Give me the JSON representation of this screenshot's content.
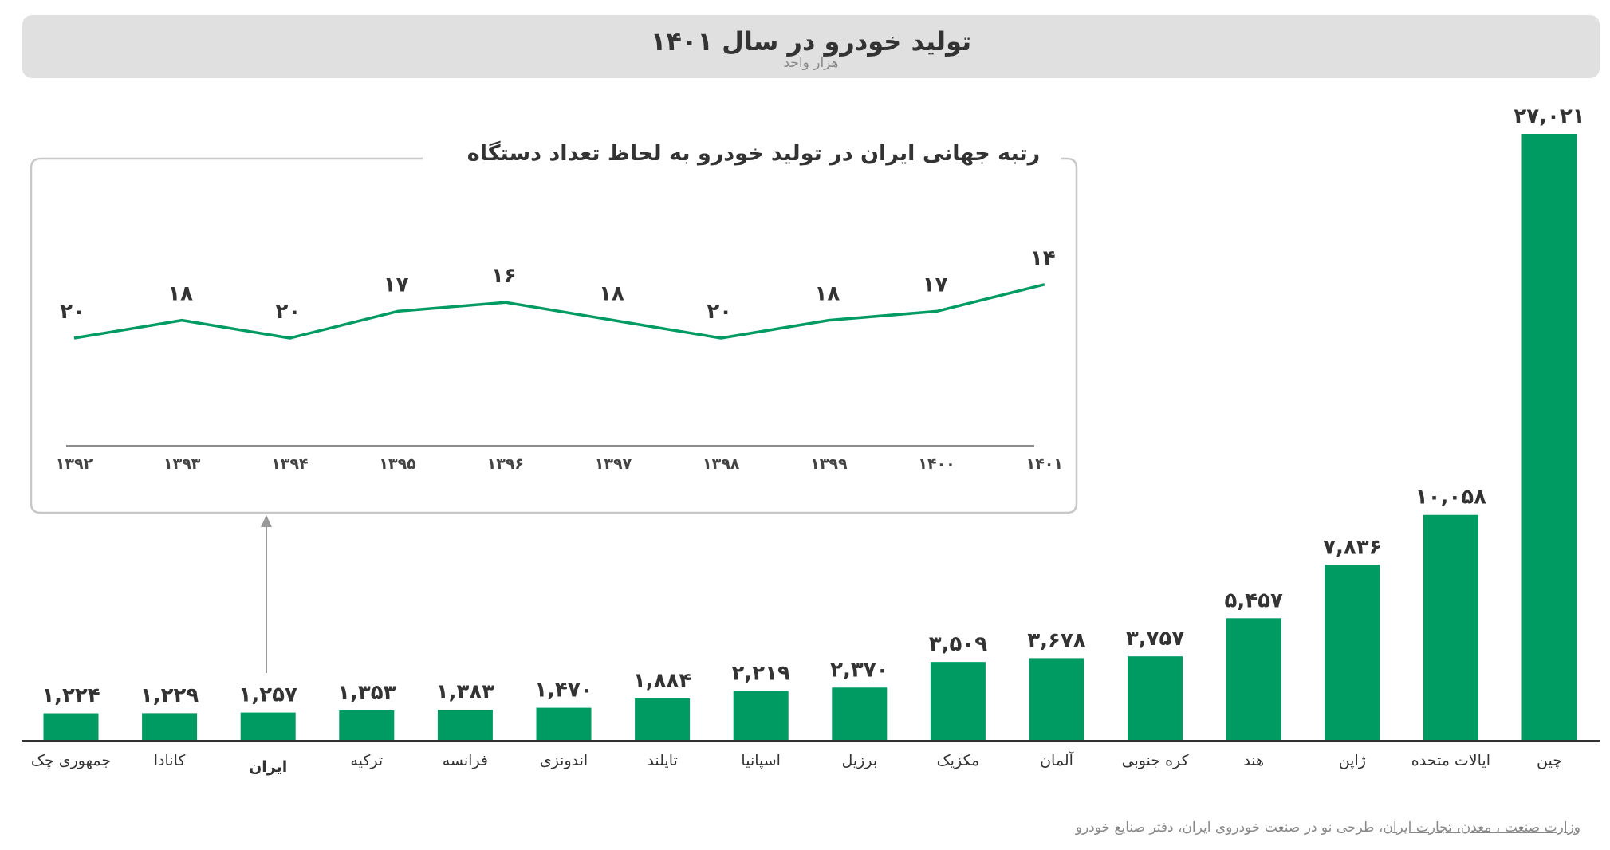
{
  "header": {
    "title": "تولید خودرو در سال ۱۴۰۱",
    "subtitle": "هزار واحد"
  },
  "colors": {
    "bar": "#009a63",
    "line": "#009a63",
    "header_bg": "#e0e0e0",
    "axis": "#333333",
    "inset_border": "#c8c8c8"
  },
  "chart_data": [
    {
      "type": "bar",
      "title": "تولید خودرو در سال ۱۴۰۱",
      "subtitle": "هزار واحد",
      "categories": [
        "جمهوری چک",
        "کانادا",
        "ایران",
        "ترکیه",
        "فرانسه",
        "اندونزی",
        "تایلند",
        "اسپانیا",
        "برزیل",
        "مکزیک",
        "آلمان",
        "کره جنوبی",
        "هند",
        "ژاپن",
        "ایالات متحده",
        "چین"
      ],
      "values": [
        1224,
        1229,
        1257,
        1353,
        1383,
        1470,
        1884,
        2219,
        2370,
        3509,
        3678,
        3757,
        5457,
        7836,
        10058,
        27021
      ],
      "data_labels": [
        "۱,۲۲۴",
        "۱,۲۲۹",
        "۱,۲۵۷",
        "۱,۳۵۳",
        "۱,۳۸۳",
        "۱,۴۷۰",
        "۱,۸۸۴",
        "۲,۲۱۹",
        "۲,۳۷۰",
        "۳,۵۰۹",
        "۳,۶۷۸",
        "۳,۷۵۷",
        "۵,۴۵۷",
        "۷,۸۳۶",
        "۱۰,۰۵۸",
        "۲۷,۰۲۱"
      ],
      "highlighted_category": "ایران",
      "ylim": [
        0,
        27021
      ],
      "grid": false
    },
    {
      "type": "line",
      "title": "رتبه جهانی ایران در تولید خودرو به لحاظ تعداد دستگاه",
      "x": [
        "۱۳۹۲",
        "۱۳۹۳",
        "۱۳۹۴",
        "۱۳۹۵",
        "۱۳۹۶",
        "۱۳۹۷",
        "۱۳۹۸",
        "۱۳۹۹",
        "۱۴۰۰",
        "۱۴۰۱"
      ],
      "values": [
        20,
        18,
        20,
        17,
        16,
        18,
        20,
        18,
        17,
        14
      ],
      "data_labels": [
        "۲۰",
        "۱۸",
        "۲۰",
        "۱۷",
        "۱۶",
        "۱۸",
        "۲۰",
        "۱۸",
        "۱۷",
        "۱۴"
      ],
      "grid": false
    }
  ],
  "footer": {
    "source_linked": "وزارت صنعت ، معدن، تجارت ایران",
    "source_rest": "، طرحی نو در صنعت خودروی ایران، دفتر صنایع خودرو"
  }
}
